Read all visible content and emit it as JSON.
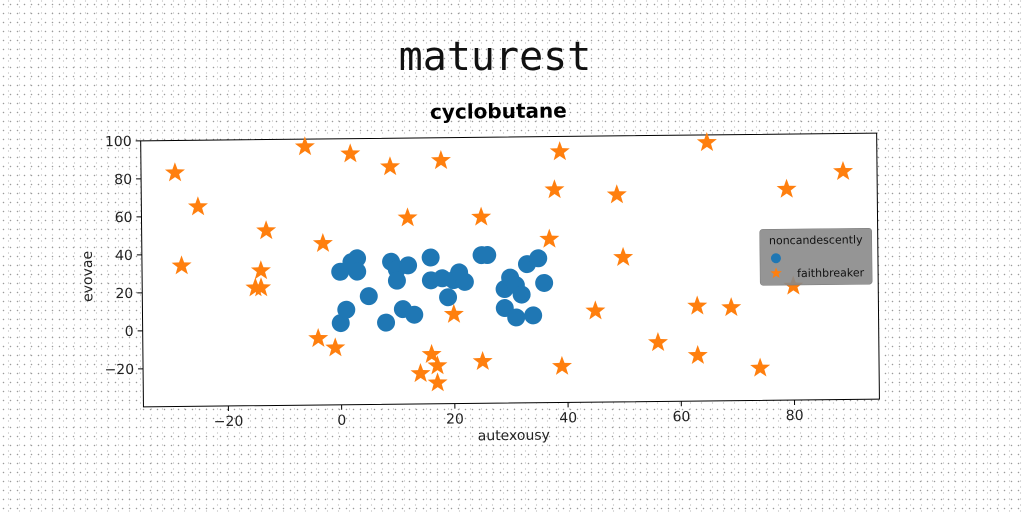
{
  "chart_data": {
    "type": "scatter",
    "suptitle": "maturest",
    "title": "cyclobutane",
    "xlabel": "autexousy",
    "ylabel": "evovae",
    "xlim": [
      -35,
      95
    ],
    "ylim": [
      -40,
      100
    ],
    "xticks": [
      -20,
      0,
      20,
      40,
      60,
      80
    ],
    "yticks": [
      -20,
      0,
      20,
      40,
      60,
      80,
      100
    ],
    "legend": {
      "title": "noncandescently",
      "placement": "right"
    },
    "series": [
      {
        "name": "",
        "marker": "circle",
        "color": "#1f77b4",
        "points": [
          [
            0,
            3
          ],
          [
            1,
            10
          ],
          [
            0,
            30
          ],
          [
            2,
            35
          ],
          [
            3,
            37
          ],
          [
            3,
            30
          ],
          [
            5,
            17
          ],
          [
            8,
            3
          ],
          [
            9,
            35
          ],
          [
            10,
            31
          ],
          [
            10,
            25
          ],
          [
            11,
            10
          ],
          [
            12,
            33
          ],
          [
            13,
            7
          ],
          [
            16,
            25
          ],
          [
            16,
            37
          ],
          [
            18,
            26
          ],
          [
            19,
            16
          ],
          [
            20,
            25
          ],
          [
            21,
            29
          ],
          [
            22,
            24
          ],
          [
            25,
            38
          ],
          [
            26,
            38
          ],
          [
            29,
            20
          ],
          [
            29,
            10
          ],
          [
            30,
            26
          ],
          [
            31,
            5
          ],
          [
            31,
            22
          ],
          [
            32,
            17
          ],
          [
            33,
            33
          ],
          [
            34,
            6
          ],
          [
            35,
            36
          ],
          [
            36,
            23
          ]
        ]
      },
      {
        "name": "faithbreaker",
        "marker": "star",
        "color": "#ff7f0e",
        "points": [
          [
            -29,
            83
          ],
          [
            -28,
            34
          ],
          [
            -25,
            65
          ],
          [
            -15,
            22
          ],
          [
            -14,
            31
          ],
          [
            -14,
            22
          ],
          [
            -13,
            52
          ],
          [
            -6,
            96
          ],
          [
            -4,
            -5
          ],
          [
            -3,
            45
          ],
          [
            -1,
            -10
          ],
          [
            2,
            92
          ],
          [
            9,
            85
          ],
          [
            12,
            58
          ],
          [
            14,
            -24
          ],
          [
            16,
            -14
          ],
          [
            17,
            -20
          ],
          [
            17,
            -29
          ],
          [
            18,
            88
          ],
          [
            20,
            7
          ],
          [
            25,
            58
          ],
          [
            25,
            -18
          ],
          [
            37,
            46
          ],
          [
            38,
            72
          ],
          [
            39,
            92
          ],
          [
            39,
            -21
          ],
          [
            45,
            8
          ],
          [
            49,
            69
          ],
          [
            50,
            36
          ],
          [
            56,
            -9
          ],
          [
            63,
            10
          ],
          [
            63,
            -16
          ],
          [
            65,
            96
          ],
          [
            69,
            9
          ],
          [
            74,
            -23
          ],
          [
            79,
            71
          ],
          [
            80,
            20
          ],
          [
            89,
            80
          ]
        ]
      }
    ]
  }
}
